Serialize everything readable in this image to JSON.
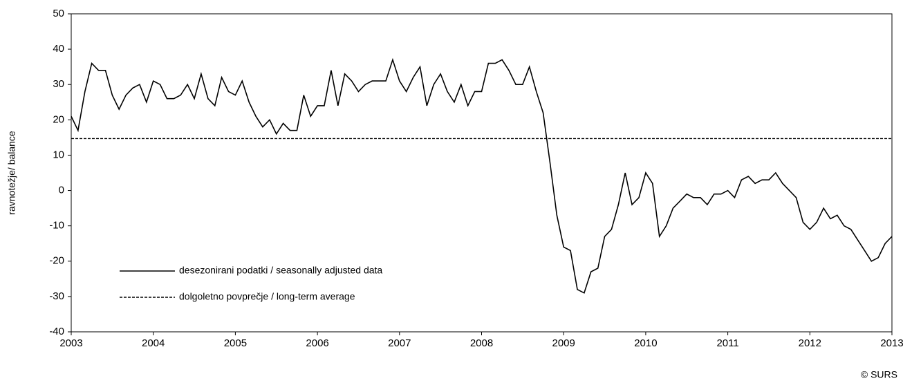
{
  "chart_data": {
    "type": "line",
    "y_label": "ravnotežje/ balance",
    "credit": "© SURS",
    "xlim": [
      2003,
      2013
    ],
    "xticks": [
      2003,
      2004,
      2005,
      2006,
      2007,
      2008,
      2009,
      2010,
      2011,
      2012,
      2013
    ],
    "ylim": [
      -40,
      50
    ],
    "yticks": [
      -40,
      -30,
      -20,
      -10,
      0,
      10,
      20,
      30,
      40,
      50
    ],
    "grid": false,
    "legend": "lower left",
    "series": [
      {
        "name": "desezonirani podatki / seasonally adjusted data",
        "color": "#000000",
        "style": "solid",
        "x": [
          2003,
          2003.083,
          2003.167,
          2003.25,
          2003.333,
          2003.417,
          2003.5,
          2003.583,
          2003.667,
          2003.75,
          2003.833,
          2003.917,
          2004,
          2004.083,
          2004.167,
          2004.25,
          2004.333,
          2004.417,
          2004.5,
          2004.583,
          2004.667,
          2004.75,
          2004.833,
          2004.917,
          2005,
          2005.083,
          2005.167,
          2005.25,
          2005.333,
          2005.417,
          2005.5,
          2005.583,
          2005.667,
          2005.75,
          2005.833,
          2005.917,
          2006,
          2006.083,
          2006.167,
          2006.25,
          2006.333,
          2006.417,
          2006.5,
          2006.583,
          2006.667,
          2006.75,
          2006.833,
          2006.917,
          2007,
          2007.083,
          2007.167,
          2007.25,
          2007.333,
          2007.417,
          2007.5,
          2007.583,
          2007.667,
          2007.75,
          2007.833,
          2007.917,
          2008,
          2008.083,
          2008.167,
          2008.25,
          2008.333,
          2008.417,
          2008.5,
          2008.583,
          2008.667,
          2008.75,
          2008.833,
          2008.917,
          2009,
          2009.083,
          2009.167,
          2009.25,
          2009.333,
          2009.417,
          2009.5,
          2009.583,
          2009.667,
          2009.75,
          2009.833,
          2009.917,
          2010,
          2010.083,
          2010.167,
          2010.25,
          2010.333,
          2010.417,
          2010.5,
          2010.583,
          2010.667,
          2010.75,
          2010.833,
          2010.917,
          2011,
          2011.083,
          2011.167,
          2011.25,
          2011.333,
          2011.417,
          2011.5,
          2011.583,
          2011.667,
          2011.75,
          2011.833,
          2011.917,
          2012,
          2012.083,
          2012.167,
          2012.25,
          2012.333,
          2012.417,
          2012.5,
          2012.583,
          2012.667,
          2012.75,
          2012.833,
          2012.917,
          2013
        ],
        "values": [
          21,
          17,
          28,
          36,
          34,
          34,
          27,
          23,
          27,
          29,
          30,
          25,
          31,
          30,
          26,
          26,
          27,
          30,
          26,
          33,
          26,
          24,
          32,
          28,
          27,
          31,
          25,
          21,
          18,
          20,
          16,
          19,
          17,
          17,
          27,
          21,
          24,
          24,
          34,
          24,
          33,
          31,
          28,
          30,
          31,
          31,
          31,
          37,
          31,
          28,
          32,
          35,
          24,
          30,
          33,
          28,
          25,
          30,
          24,
          28,
          28,
          36,
          36,
          37,
          34,
          30,
          30,
          35,
          28,
          22,
          8,
          -7,
          -16,
          -17,
          -28,
          -29,
          -23,
          -22,
          -13,
          -11,
          -4,
          5,
          -4,
          -2,
          5,
          2,
          -13,
          -10,
          -5,
          -3,
          -1,
          -2,
          -2,
          -4,
          -1,
          -1,
          0,
          -2,
          3,
          4,
          2,
          3,
          3,
          5,
          2,
          0,
          -2,
          -9,
          -11,
          -9,
          -5,
          -8,
          -7,
          -10,
          -11,
          -14,
          -17,
          -20,
          -19,
          -15,
          -13
        ]
      },
      {
        "name": "dolgoletno povprečje / long-term average",
        "color": "#000000",
        "style": "dashed",
        "x": [
          2003,
          2013
        ],
        "values": [
          14.7,
          14.7
        ]
      }
    ]
  }
}
